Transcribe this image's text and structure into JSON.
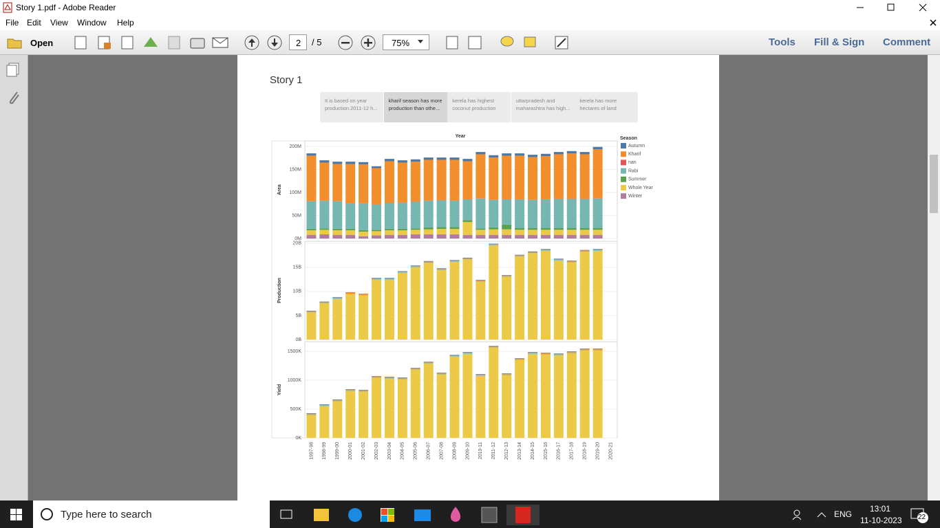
{
  "window": {
    "title": "Story 1.pdf - Adobe Reader",
    "menu": [
      "File",
      "Edit",
      "View",
      "Window",
      "Help"
    ]
  },
  "toolbar": {
    "open": "Open",
    "page": "2",
    "page_of": "/ 5",
    "zoom": "75%",
    "tools": "Tools",
    "fill_sign": "Fill & Sign",
    "comment": "Comment"
  },
  "document": {
    "title": "Story 1",
    "story_points": [
      [
        "It is based on year",
        "production.2011-12 h..."
      ],
      [
        "kharif season has more",
        "production than othe..."
      ],
      [
        "kerela has highest",
        "coconut production"
      ],
      [
        "uttarpradesh  and",
        "maharashtra has high..."
      ],
      [
        "kerela has more",
        "hectares of land"
      ]
    ]
  },
  "chart_data": {
    "type": "bar",
    "stacked": true,
    "title": "Year",
    "legend_title": "Season",
    "grid": true,
    "categories": [
      "1997-98",
      "1998-99",
      "1999-00",
      "2000-01",
      "2001-02",
      "2002-03",
      "2003-04",
      "2004-05",
      "2005-06",
      "2006-07",
      "2007-08",
      "2008-09",
      "2009-10",
      "2010-11",
      "2011-12",
      "2012-13",
      "2013-14",
      "2014-15",
      "2015-16",
      "2016-17",
      "2017-18",
      "2018-19",
      "2019-20",
      "2020-21"
    ],
    "panels": [
      {
        "y_label": "Area",
        "ylim": [
          0,
          212
        ],
        "yticks": [
          {
            "value": 0,
            "label": "0M"
          },
          {
            "value": 50,
            "label": "50M"
          },
          {
            "value": 100,
            "label": "100M"
          },
          {
            "value": 150,
            "label": "150M"
          },
          {
            "value": 200,
            "label": "200M"
          }
        ],
        "series": [
          {
            "name": "Autumn",
            "color": "#4e79a7",
            "values": [
              5,
              5,
              5,
              5,
              5,
              4,
              5,
              5,
              5,
              5,
              5,
              5,
              5,
              5,
              5,
              5,
              5,
              5,
              5,
              5,
              5,
              5,
              5,
              null
            ]
          },
          {
            "name": "Kharif",
            "color": "#f28e2b",
            "values": [
              98.5,
              82.5,
              80.5,
              85.5,
              84.5,
              78.5,
              90.5,
              86.5,
              86.5,
              88.5,
              87.5,
              88.5,
              82.5,
              95.5,
              91.5,
              94.5,
              94.5,
              92.5,
              93.5,
              96.5,
              98.5,
              96.5,
              106.5,
              null
            ]
          },
          {
            "name": "nan",
            "color": "#e15759",
            "values": [
              0.5,
              0.5,
              0.5,
              0.5,
              0.5,
              0.5,
              0.5,
              0.5,
              0.5,
              0.5,
              0.5,
              0.5,
              0.5,
              0.5,
              0.5,
              0.5,
              0.5,
              0.5,
              0.5,
              0.5,
              0.5,
              0.5,
              0.5,
              null
            ]
          },
          {
            "name": "Rabi",
            "color": "#76b7b2",
            "values": [
              60,
              60,
              60,
              55,
              58,
              55,
              56,
              57,
              58,
              58,
              58,
              57,
              45,
              65,
              60,
              55,
              62,
              61,
              62,
              63,
              63,
              63,
              64,
              null
            ]
          },
          {
            "name": "Summer",
            "color": "#59a14f",
            "values": [
              3,
              3,
              3,
              3,
              3,
              3,
              3,
              3,
              3,
              4,
              4,
              4,
              4,
              3,
              4,
              10,
              4,
              4,
              4,
              4,
              4,
              4,
              4,
              null
            ]
          },
          {
            "name": "Whole Year",
            "color": "#edc948",
            "values": [
              10,
              10,
              10,
              10,
              10,
              9,
              10,
              10,
              10,
              11,
              12,
              12,
              28,
              11,
              12,
              12,
              11,
              11,
              11,
              11,
              11,
              11,
              11,
              null
            ]
          },
          {
            "name": "Winter",
            "color": "#b07aa1",
            "values": [
              8,
              9,
              8,
              8,
              5,
              7,
              8,
              8,
              9,
              9,
              9,
              9,
              8,
              8,
              8,
              8,
              8,
              8,
              8,
              8,
              8,
              8,
              8,
              null
            ]
          }
        ]
      },
      {
        "y_label": "Production",
        "ylim": [
          0,
          20.4
        ],
        "yticks": [
          {
            "value": 0,
            "label": "0B"
          },
          {
            "value": 5,
            "label": "5B"
          },
          {
            "value": 10,
            "label": "10B"
          },
          {
            "value": 15,
            "label": "15B"
          },
          {
            "value": 20,
            "label": "20B"
          }
        ],
        "series": [
          {
            "name": "Autumn",
            "color": "#4e79a7",
            "values": [
              0.1,
              0.1,
              0.1,
              0.1,
              0.1,
              0.1,
              0.1,
              0.1,
              0.1,
              0.1,
              0.1,
              0.1,
              0.1,
              0.1,
              0.1,
              0.1,
              0.1,
              0.1,
              0.1,
              0.1,
              0.1,
              0.1,
              0.1,
              null
            ]
          },
          {
            "name": "Kharif",
            "color": "#f28e2b",
            "values": [
              0.15,
              0.15,
              0.15,
              0.15,
              0.15,
              0.15,
              0.15,
              0.15,
              0.15,
              0.15,
              0.15,
              0.15,
              0.15,
              0.15,
              0.15,
              0.15,
              0.15,
              0.15,
              0.15,
              0.15,
              0.15,
              0.15,
              0.15,
              null
            ]
          },
          {
            "name": "Rabi",
            "color": "#76b7b2",
            "values": [
              0.1,
              0.1,
              0.1,
              0.1,
              0.1,
              0.1,
              0.1,
              0.1,
              0.1,
              0.1,
              0.1,
              0.1,
              0.1,
              0.1,
              0.1,
              0.1,
              0.1,
              0.1,
              0.1,
              0.1,
              0.1,
              0.1,
              0.1,
              null
            ]
          },
          {
            "name": "Whole Year",
            "color": "#edc948",
            "values": [
              5.65,
              7.55,
              8.45,
              9.45,
              9.15,
              12.45,
              12.45,
              13.85,
              15.05,
              15.95,
              14.45,
              16.15,
              16.65,
              12.05,
              19.55,
              13.05,
              17.25,
              17.95,
              18.45,
              16.45,
              16.05,
              18.25,
              18.45,
              null
            ]
          }
        ]
      },
      {
        "y_label": "Yield",
        "ylim": [
          0,
          1667
        ],
        "yticks": [
          {
            "value": 0,
            "label": "0K"
          },
          {
            "value": 500,
            "label": "500K"
          },
          {
            "value": 1000,
            "label": "1000K"
          },
          {
            "value": 1500,
            "label": "1500K"
          }
        ],
        "series": [
          {
            "name": "Autumn",
            "color": "#4e79a7",
            "values": [
              8,
              8,
              8,
              8,
              8,
              8,
              8,
              8,
              8,
              8,
              8,
              8,
              8,
              8,
              8,
              8,
              8,
              8,
              8,
              8,
              8,
              8,
              8,
              null
            ]
          },
          {
            "name": "Kharif",
            "color": "#f28e2b",
            "values": [
              12,
              12,
              12,
              12,
              12,
              12,
              12,
              12,
              12,
              12,
              12,
              12,
              12,
              12,
              12,
              12,
              12,
              12,
              12,
              12,
              12,
              12,
              12,
              null
            ]
          },
          {
            "name": "Rabi",
            "color": "#76b7b2",
            "values": [
              10,
              10,
              10,
              10,
              10,
              10,
              10,
              10,
              10,
              10,
              10,
              10,
              10,
              10,
              10,
              10,
              10,
              10,
              10,
              10,
              10,
              10,
              10,
              null
            ]
          },
          {
            "name": "Whole Year",
            "color": "#edc948",
            "values": [
              399,
              553,
              637,
              815,
              803,
              1041,
              1030,
              1018,
              1184,
              1291,
              1101,
              1410,
              1458,
              1077,
              1565,
              1089,
              1351,
              1458,
              1446,
              1434,
              1470,
              1518,
              1518,
              null
            ]
          }
        ]
      }
    ]
  },
  "taskbar": {
    "search": "Type here to search",
    "language": "ENG",
    "time": "13:01",
    "date": "11-10-2023",
    "notifications": "22"
  }
}
